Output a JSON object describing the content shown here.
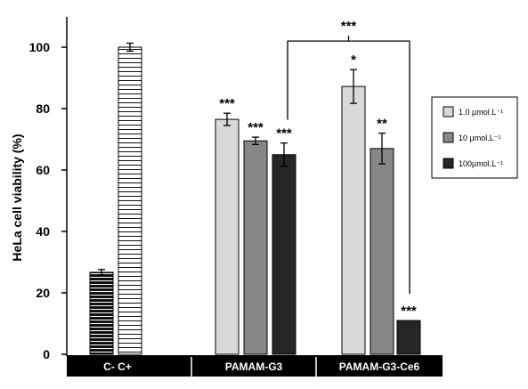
{
  "chart_data": {
    "type": "bar",
    "title": "",
    "ylabel": "HeLa cell viability (%)",
    "xlabel": "",
    "ylim": [
      0,
      100
    ],
    "yticks": [
      0,
      20,
      40,
      60,
      80,
      100
    ],
    "grid": false,
    "legend_position": "right",
    "groups": [
      {
        "label": "C-   C+",
        "bars": [
          {
            "name": "C-",
            "value": 26.7,
            "error": 0.9,
            "color": "#111111",
            "pattern": "horizontal-lines-dark"
          },
          {
            "name": "C+",
            "value": 100,
            "error": 1.3,
            "color": "#ffffff",
            "pattern": "horizontal-lines-light"
          }
        ]
      },
      {
        "label": "PAMAM-G3",
        "bars": [
          {
            "series": "1.0 µmol.L⁻¹",
            "value": 76.5,
            "error": 2.0,
            "significance": "***"
          },
          {
            "series": "10 µmol.L⁻¹",
            "value": 69.5,
            "error": 1.2,
            "significance": "***"
          },
          {
            "series": "100µmol.L⁻¹",
            "value": 65,
            "error": 3.8,
            "significance": "***"
          }
        ]
      },
      {
        "label": "PAMAM-G3-Ce6",
        "bars": [
          {
            "series": "1.0 µmol.L⁻¹",
            "value": 87.2,
            "error": 5.5,
            "significance": "*"
          },
          {
            "series": "10 µmol.L⁻¹",
            "value": 67,
            "error": 5.0,
            "significance": "**"
          },
          {
            "series": "100µmol.L⁻¹",
            "value": 11,
            "error": 0,
            "significance": "***"
          }
        ]
      }
    ],
    "series": [
      {
        "name": "1.0 µmol.L⁻¹",
        "color": "#d9d9d9"
      },
      {
        "name": "10 µmol.L⁻¹",
        "color": "#878787"
      },
      {
        "name": "100µmol.L⁻¹",
        "color": "#262626"
      }
    ],
    "bracket": {
      "label": "***",
      "from": "PAMAM-G3 100µmol.L⁻¹",
      "to": "PAMAM-G3-Ce6 100µmol.L⁻¹",
      "height": 102
    }
  }
}
